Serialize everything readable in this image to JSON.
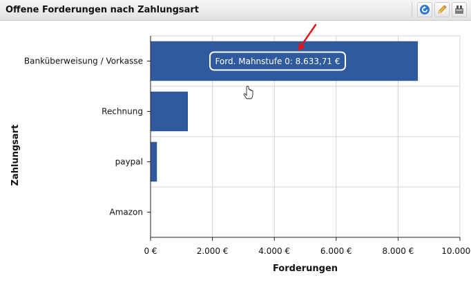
{
  "header": {
    "title": "Offene Forderungen nach Zahlungsart",
    "buttons": [
      {
        "icon": "refresh-icon",
        "color": "#2a78d1"
      },
      {
        "icon": "pencil-icon",
        "color": "#e8a21a"
      },
      {
        "icon": "filter-icon",
        "color": "#666666"
      }
    ]
  },
  "chart_data": {
    "type": "bar",
    "orientation": "horizontal",
    "categories": [
      "Banküberweisung / Vorkasse",
      "Rechnung",
      "paypal",
      "Amazon"
    ],
    "values": [
      8633.71,
      1200,
      200,
      0
    ],
    "xlabel": "Forderungen",
    "ylabel": "Zahlungsart",
    "xlim": [
      0,
      10000
    ],
    "x_ticks": [
      0,
      2000,
      4000,
      6000,
      8000,
      10000
    ],
    "x_tick_labels": [
      "0 €",
      "2.000 €",
      "4.000 €",
      "6.000 €",
      "8.000 €",
      "10.000 €"
    ],
    "grid": true,
    "bar_color": "#2f5a9e",
    "tooltip": {
      "category": "Banküberweisung / Vorkasse",
      "text": "Ford. Mahnstufe 0: 8.633,71 €"
    },
    "annotation_arrow_color": "#e0161b"
  }
}
